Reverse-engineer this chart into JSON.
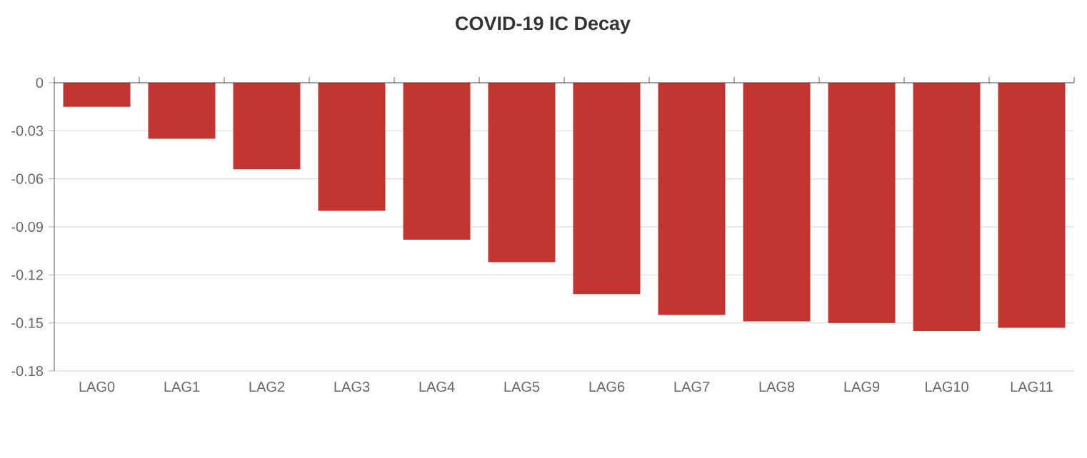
{
  "chart_data": {
    "type": "bar",
    "title": "COVID-19 IC Decay",
    "categories": [
      "LAG0",
      "LAG1",
      "LAG2",
      "LAG3",
      "LAG4",
      "LAG5",
      "LAG6",
      "LAG7",
      "LAG8",
      "LAG9",
      "LAG10",
      "LAG11"
    ],
    "values": [
      -0.015,
      -0.035,
      -0.054,
      -0.08,
      -0.098,
      -0.112,
      -0.132,
      -0.145,
      -0.149,
      -0.15,
      -0.155,
      -0.153
    ],
    "color": "#c23531",
    "ylim": [
      -0.18,
      0
    ],
    "yticks": [
      0,
      -0.03,
      -0.06,
      -0.09,
      -0.12,
      -0.15,
      -0.18
    ],
    "grid": "y"
  }
}
